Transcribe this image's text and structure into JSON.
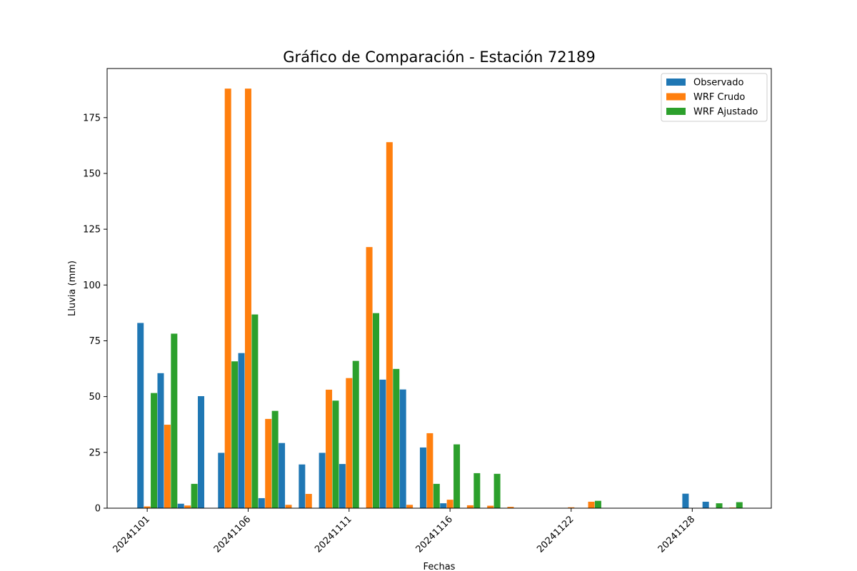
{
  "chart_data": {
    "type": "bar",
    "title": "Gráfico de Comparación - Estación 72189",
    "xlabel": "Fechas",
    "ylabel": "Lluvia (mm)",
    "ylim": [
      0,
      197
    ],
    "yticks": [
      0,
      25,
      50,
      75,
      100,
      125,
      150,
      175
    ],
    "xtick_labels": [
      "20241101",
      "20241106",
      "20241111",
      "20241116",
      "20241122",
      "20241128"
    ],
    "xtick_positions": [
      "20241101",
      "20241106",
      "20241111",
      "20241116",
      "20241122",
      "20241128"
    ],
    "x": [
      "20241101",
      "20241102",
      "20241103",
      "20241104",
      "20241105",
      "20241106",
      "20241107",
      "20241108",
      "20241109",
      "20241110",
      "20241111",
      "20241112",
      "20241113",
      "20241114",
      "20241115",
      "20241116",
      "20241117",
      "20241118",
      "20241119",
      "20241120",
      "20241122",
      "20241123",
      "20241124",
      "20241125",
      "20241126",
      "20241128",
      "20241129",
      "20241130"
    ],
    "series": [
      {
        "name": "Observado",
        "color": "#1f77b4",
        "values": [
          83,
          60.5,
          2,
          50.2,
          24.8,
          69.5,
          4.5,
          29.2,
          19.6,
          24.8,
          19.8,
          0,
          57.6,
          53.2,
          27.2,
          2.2,
          0,
          0,
          0,
          0,
          0,
          0,
          0,
          0,
          0,
          6.5,
          2.9,
          0
        ]
      },
      {
        "name": "WRF Crudo",
        "color": "#ff7f0e",
        "values": [
          0.8,
          37.4,
          1.2,
          0,
          188,
          188,
          40,
          1.5,
          6.4,
          53.1,
          58.3,
          117,
          164,
          1.5,
          33.6,
          3.8,
          1.3,
          1.1,
          0.6,
          0,
          0.4,
          2.9,
          0,
          0,
          0,
          0,
          0,
          0.3
        ]
      },
      {
        "name": "WRF Ajustado",
        "color": "#2ca02c",
        "values": [
          51.6,
          78.2,
          10.9,
          0,
          65.8,
          86.8,
          43.6,
          0,
          0,
          48.2,
          66,
          87.4,
          62.4,
          0,
          10.9,
          28.6,
          15.7,
          15.4,
          0,
          0,
          0,
          3.3,
          0,
          0,
          0,
          0,
          2.2,
          2.7
        ]
      }
    ],
    "legend_position": "top-right",
    "grid": false
  }
}
